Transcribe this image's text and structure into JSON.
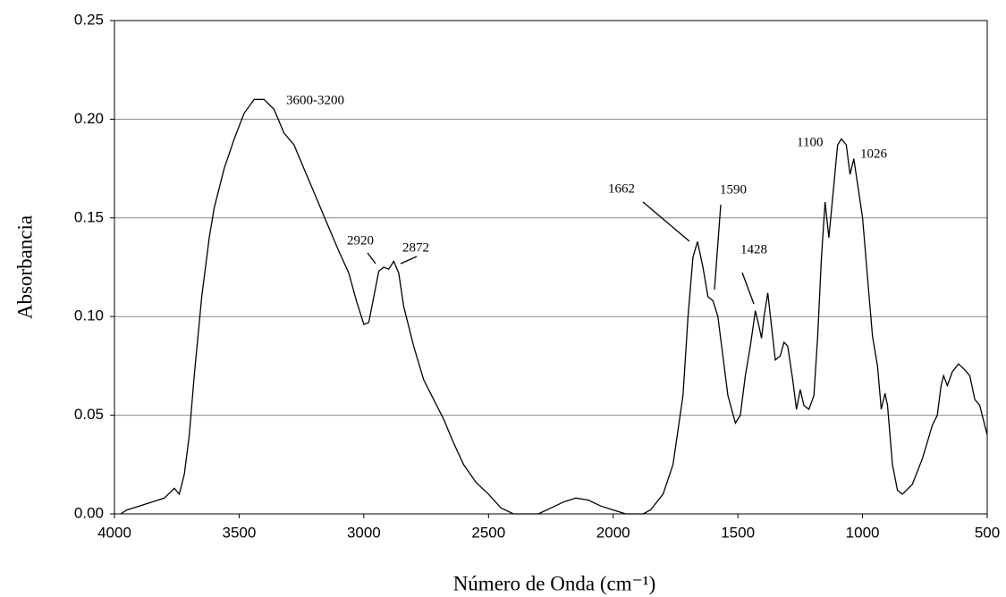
{
  "chart_data": {
    "type": "line",
    "y_label": "Absorbancia",
    "x_label": "Número de Onda (cm⁻¹)",
    "color": "#000000",
    "grid": true,
    "xlim": [
      4000,
      500
    ],
    "ylim": [
      0,
      0.25
    ],
    "xticks": [
      4000,
      3500,
      3000,
      2500,
      2000,
      1500,
      1000,
      500
    ],
    "yticks": [
      {
        "value": 0,
        "label": "0.00"
      },
      {
        "value": 0.05,
        "label": "0.05"
      },
      {
        "value": 0.1,
        "label": "0.10"
      },
      {
        "value": 0.15,
        "label": "0.15"
      },
      {
        "value": 0.2,
        "label": "0.20"
      },
      {
        "value": 0.25,
        "label": "0.25"
      }
    ],
    "annotations": [
      "3600-3200",
      "2920",
      "2872",
      "1662",
      "1590",
      "1428",
      "1100",
      "1026"
    ],
    "x": [
      3975,
      3950,
      3900,
      3850,
      3800,
      3760,
      3740,
      3720,
      3700,
      3680,
      3650,
      3620,
      3600,
      3560,
      3520,
      3480,
      3440,
      3400,
      3360,
      3320,
      3280,
      3240,
      3200,
      3150,
      3100,
      3060,
      3030,
      3000,
      2980,
      2960,
      2940,
      2920,
      2900,
      2880,
      2860,
      2840,
      2800,
      2760,
      2720,
      2680,
      2640,
      2600,
      2550,
      2500,
      2450,
      2400,
      2300,
      2250,
      2200,
      2150,
      2100,
      2050,
      2000,
      1950,
      1880,
      1850,
      1800,
      1760,
      1720,
      1700,
      1680,
      1662,
      1640,
      1620,
      1600,
      1580,
      1560,
      1540,
      1510,
      1490,
      1470,
      1450,
      1430,
      1415,
      1405,
      1395,
      1380,
      1365,
      1350,
      1330,
      1315,
      1300,
      1280,
      1265,
      1250,
      1235,
      1215,
      1195,
      1180,
      1165,
      1150,
      1135,
      1120,
      1100,
      1085,
      1065,
      1050,
      1035,
      1015,
      1000,
      980,
      960,
      940,
      925,
      910,
      900,
      880,
      860,
      840,
      800,
      760,
      720,
      700,
      685,
      675,
      660,
      640,
      615,
      590,
      570,
      550,
      530,
      510,
      500
    ],
    "values": [
      0,
      0.002,
      0.004,
      0.006,
      0.008,
      0.013,
      0.01,
      0.02,
      0.04,
      0.07,
      0.11,
      0.14,
      0.155,
      0.175,
      0.19,
      0.203,
      0.21,
      0.21,
      0.205,
      0.193,
      0.187,
      0.175,
      0.163,
      0.148,
      0.133,
      0.122,
      0.108,
      0.096,
      0.097,
      0.11,
      0.123,
      0.125,
      0.124,
      0.128,
      0.122,
      0.105,
      0.085,
      0.068,
      0.058,
      0.048,
      0.036,
      0.025,
      0.016,
      0.01,
      0.003,
      0,
      0,
      0.003,
      0.006,
      0.008,
      0.007,
      0.004,
      0.002,
      0,
      0,
      0.002,
      0.01,
      0.025,
      0.06,
      0.1,
      0.13,
      0.138,
      0.125,
      0.11,
      0.108,
      0.1,
      0.08,
      0.06,
      0.046,
      0.05,
      0.07,
      0.085,
      0.103,
      0.095,
      0.089,
      0.1,
      0.112,
      0.095,
      0.078,
      0.08,
      0.087,
      0.085,
      0.068,
      0.053,
      0.063,
      0.055,
      0.053,
      0.06,
      0.09,
      0.13,
      0.158,
      0.14,
      0.16,
      0.187,
      0.19,
      0.187,
      0.172,
      0.18,
      0.163,
      0.15,
      0.12,
      0.09,
      0.075,
      0.053,
      0.061,
      0.055,
      0.025,
      0.012,
      0.01,
      0.015,
      0.028,
      0.045,
      0.05,
      0.065,
      0.07,
      0.065,
      0.072,
      0.076,
      0.073,
      0.07,
      0.058,
      0.055,
      0.045,
      0.04
    ]
  }
}
